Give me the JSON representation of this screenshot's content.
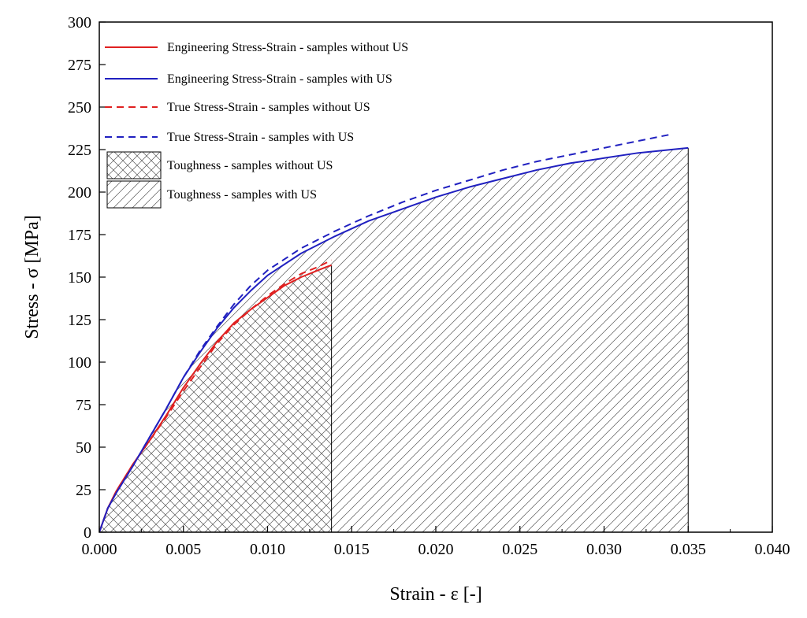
{
  "chart_data": {
    "type": "line",
    "title": "",
    "xlabel": "Strain - ε [-]",
    "ylabel": "Stress - σ [MPa]",
    "xlim": [
      0,
      0.04
    ],
    "ylim": [
      0,
      300
    ],
    "x_ticks": [
      "0.000",
      "0.005",
      "0.010",
      "0.015",
      "0.020",
      "0.025",
      "0.030",
      "0.035",
      "0.040"
    ],
    "y_ticks": [
      "0",
      "25",
      "50",
      "75",
      "100",
      "125",
      "150",
      "175",
      "200",
      "225",
      "250",
      "275",
      "300"
    ],
    "grid": false,
    "legend_position": "top-left",
    "series": [
      {
        "name": "Engineering Stress-Strain - samples without US",
        "color": "#e02020",
        "style": "solid",
        "x": [
          0,
          0.0005,
          0.001,
          0.002,
          0.003,
          0.004,
          0.005,
          0.006,
          0.007,
          0.008,
          0.009,
          0.01,
          0.011,
          0.012,
          0.013,
          0.0135,
          0.0138
        ],
        "y": [
          0,
          14,
          24,
          40,
          54,
          69,
          85,
          99,
          112,
          123,
          131,
          138,
          145,
          150,
          154,
          156,
          157
        ]
      },
      {
        "name": "Engineering Stress-Strain - samples  with US",
        "color": "#2020c0",
        "style": "solid",
        "x": [
          0,
          0.0005,
          0.001,
          0.002,
          0.003,
          0.004,
          0.005,
          0.006,
          0.007,
          0.008,
          0.009,
          0.01,
          0.012,
          0.014,
          0.016,
          0.018,
          0.02,
          0.022,
          0.024,
          0.026,
          0.028,
          0.03,
          0.032,
          0.034,
          0.035
        ],
        "y": [
          0,
          14,
          23,
          39,
          56,
          73,
          91,
          106,
          120,
          132,
          142,
          151,
          164,
          174,
          183,
          190,
          197,
          203,
          208,
          213,
          217,
          220,
          223,
          225,
          226
        ]
      },
      {
        "name": "True Stress-Strain - samples  without US",
        "color": "#e02020",
        "style": "dashed",
        "x": [
          0,
          0.0005,
          0.001,
          0.002,
          0.003,
          0.004,
          0.005,
          0.006,
          0.007,
          0.008,
          0.009,
          0.01,
          0.011,
          0.012,
          0.013,
          0.0138
        ],
        "y": [
          0,
          14,
          24,
          40,
          54,
          68,
          83,
          97,
          111,
          122,
          131,
          139,
          146,
          152,
          156,
          160
        ]
      },
      {
        "name": "True Stress-Strain - samples  with US",
        "color": "#2020c0",
        "style": "dashed",
        "x": [
          0,
          0.0005,
          0.001,
          0.002,
          0.003,
          0.004,
          0.005,
          0.006,
          0.007,
          0.008,
          0.009,
          0.01,
          0.012,
          0.014,
          0.016,
          0.018,
          0.02,
          0.022,
          0.024,
          0.026,
          0.028,
          0.03,
          0.032,
          0.034
        ],
        "y": [
          0,
          14,
          23,
          39,
          56,
          73,
          91,
          107,
          121,
          134,
          145,
          154,
          167,
          177,
          186,
          194,
          201,
          207,
          213,
          218,
          222,
          226,
          230,
          234
        ]
      }
    ],
    "areas": [
      {
        "name": "Toughness - samples  without US",
        "pattern": "crosshatch",
        "series_ref": 0
      },
      {
        "name": "Toughness - samples  with US",
        "pattern": "diagonal",
        "series_ref": 1
      }
    ]
  }
}
